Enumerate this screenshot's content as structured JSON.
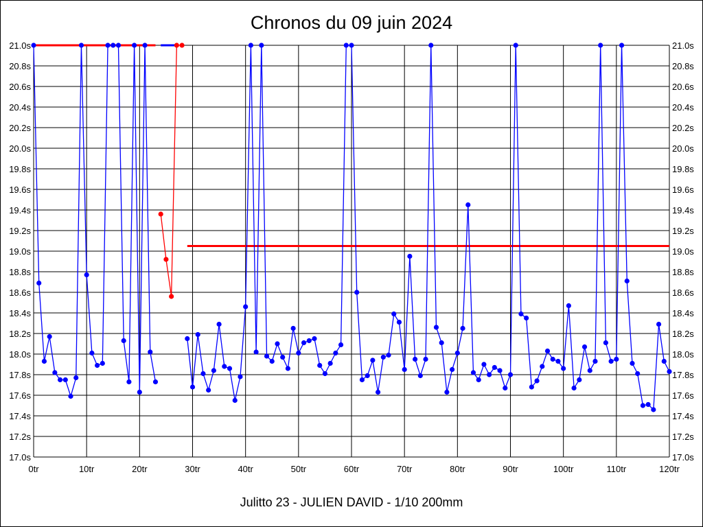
{
  "chart_data": {
    "type": "line",
    "title": "Chronos du 09 juin 2024",
    "footer": "Julitto 23 - JULIEN DAVID - 1/10 200mm",
    "xlim": [
      0,
      120
    ],
    "ylim": [
      17.0,
      21.0
    ],
    "x_ticks": [
      "0tr",
      "10tr",
      "20tr",
      "30tr",
      "40tr",
      "50tr",
      "60tr",
      "70tr",
      "80tr",
      "90tr",
      "100tr",
      "110tr",
      "120tr"
    ],
    "y_ticks": [
      "17.0s",
      "17.2s",
      "17.4s",
      "17.6s",
      "17.8s",
      "18.0s",
      "18.2s",
      "18.4s",
      "18.6s",
      "18.8s",
      "19.0s",
      "19.2s",
      "19.4s",
      "19.6s",
      "19.8s",
      "20.0s",
      "20.2s",
      "20.4s",
      "20.6s",
      "20.8s",
      "21.0s"
    ],
    "grid": true,
    "series": [
      {
        "color": "#0000ff",
        "segments": [
          {
            "x_start": 0,
            "values": [
              21.0,
              18.69,
              17.93,
              18.17,
              17.82,
              17.75,
              17.75,
              17.59,
              17.77,
              21.0,
              18.77,
              18.01,
              17.89,
              17.91,
              21.0,
              21.0,
              21.0,
              18.13,
              17.73,
              21.0,
              17.63,
              21.0,
              18.02,
              17.73
            ]
          },
          {
            "x_start": 29,
            "values": [
              18.15,
              17.68,
              18.19,
              17.81,
              17.65,
              17.84,
              18.29,
              17.88,
              17.86,
              17.55,
              17.78,
              18.46,
              21.0,
              18.02,
              21.0,
              17.98,
              17.93,
              18.1,
              17.97,
              17.86,
              18.25,
              18.01,
              18.11,
              18.13,
              18.15,
              17.89,
              17.81,
              17.91,
              18.01,
              18.09,
              21.0,
              21.0,
              18.6,
              17.75,
              17.79,
              17.94,
              17.63,
              17.97,
              17.99,
              18.39,
              18.31,
              17.85,
              18.95,
              17.95,
              17.79,
              17.95,
              21.0,
              18.26,
              18.11,
              17.63,
              17.85,
              18.01,
              18.25,
              19.45,
              17.82,
              17.75,
              17.9,
              17.8,
              17.87,
              17.84,
              17.67,
              17.8,
              21.0,
              18.39,
              18.35,
              17.68,
              17.74,
              17.88,
              18.03,
              17.95,
              17.93,
              17.86,
              18.47,
              17.67,
              17.75,
              18.07,
              17.84,
              17.93,
              21.0,
              18.11,
              17.93,
              17.95,
              21.0,
              18.71,
              17.91,
              17.81,
              17.5,
              17.51,
              17.46,
              18.29,
              17.93,
              17.83
            ]
          }
        ]
      },
      {
        "color": "#ff0000",
        "segments": [
          {
            "x_start": 24,
            "values": [
              19.36,
              18.92,
              18.56,
              21.0,
              21.0
            ]
          }
        ]
      }
    ],
    "reference_lines": [
      {
        "color": "#ff0000",
        "y": 21.0,
        "x_from": 0,
        "x_to": 23
      },
      {
        "color": "#0000ff",
        "y": 21.0,
        "x_from": 24,
        "x_to": 27
      },
      {
        "color": "#ff0000",
        "y": 19.05,
        "x_from": 29,
        "x_to": 120
      }
    ]
  }
}
